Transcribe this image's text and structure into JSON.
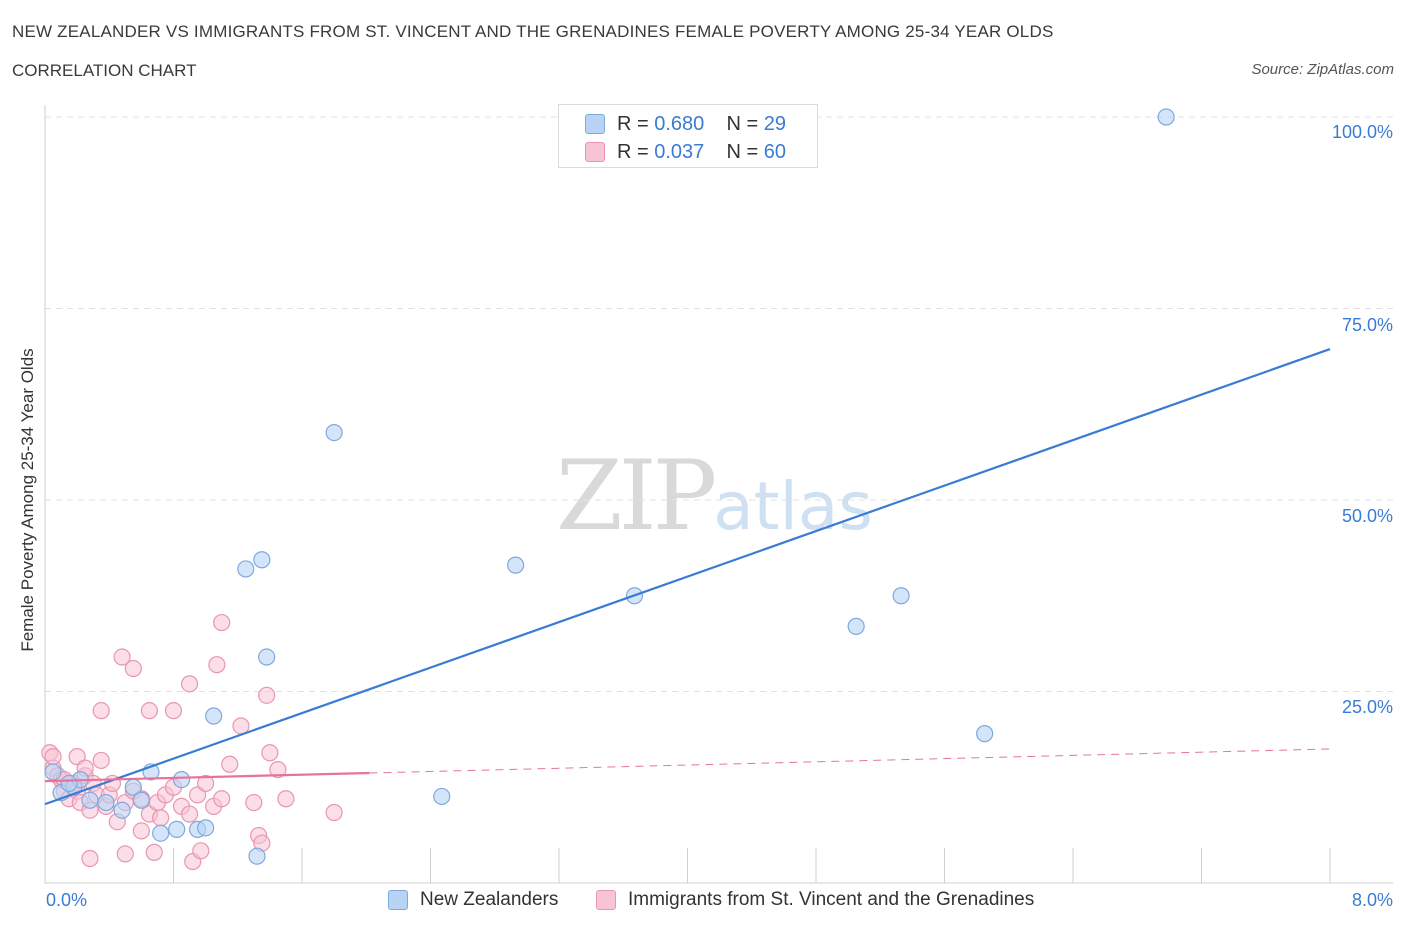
{
  "header": {
    "title": "NEW ZEALANDER VS IMMIGRANTS FROM ST. VINCENT AND THE GRENADINES FEMALE POVERTY AMONG 25-34 YEAR OLDS",
    "subtitle": "CORRELATION CHART",
    "source": "Source: ZipAtlas.com"
  },
  "watermark": {
    "zip": "ZIP",
    "atlas": "atlas"
  },
  "legend": {
    "r_label": "R =",
    "n_label": "N =",
    "series1": {
      "r": "0.680",
      "n": "29"
    },
    "series2": {
      "r": "0.037",
      "n": "60"
    }
  },
  "colors": {
    "series1_fill": "#b8d3f5",
    "series1_stroke": "#7fa9dc",
    "series1_line": "#3a7bd5",
    "series2_fill": "#f8c3d4",
    "series2_stroke": "#e896b1",
    "series2_line": "#e8739a"
  },
  "chart_data": {
    "type": "scatter",
    "title": "NEW ZEALANDER VS IMMIGRANTS FROM ST. VINCENT AND THE GRENADINES FEMALE POVERTY AMONG 25-34 YEAR OLDS",
    "xlabel": "",
    "ylabel": "Female Poverty Among 25-34 Year Olds",
    "xlim": [
      0,
      8
    ],
    "ylim": [
      0,
      102
    ],
    "x_tick_labels": [
      "0.0%",
      "8.0%"
    ],
    "y_tick_labels": [
      "100.0%",
      "75.0%",
      "50.0%",
      "25.0%"
    ],
    "y_ticks": [
      100,
      75,
      50,
      25
    ],
    "series": [
      {
        "name": "New Zealanders",
        "r": 0.68,
        "n": 29,
        "trend": {
          "x": [
            0,
            8
          ],
          "y": [
            10.3,
            69.7
          ],
          "dashed_from": null
        },
        "points": [
          [
            0.05,
            14.5
          ],
          [
            0.1,
            11.8
          ],
          [
            0.18,
            12.5
          ],
          [
            0.22,
            13.5
          ],
          [
            0.28,
            10.8
          ],
          [
            0.38,
            10.5
          ],
          [
            0.48,
            9.5
          ],
          [
            0.55,
            12.5
          ],
          [
            0.6,
            10.8
          ],
          [
            0.66,
            14.5
          ],
          [
            0.72,
            6.5
          ],
          [
            0.82,
            7.0
          ],
          [
            0.85,
            13.5
          ],
          [
            0.95,
            7.0
          ],
          [
            1.0,
            7.2
          ],
          [
            1.05,
            21.8
          ],
          [
            1.25,
            41.0
          ],
          [
            1.35,
            42.2
          ],
          [
            1.38,
            29.5
          ],
          [
            1.32,
            3.5
          ],
          [
            1.8,
            58.8
          ],
          [
            2.47,
            11.3
          ],
          [
            2.93,
            41.5
          ],
          [
            3.67,
            37.5
          ],
          [
            5.05,
            33.5
          ],
          [
            5.33,
            37.5
          ],
          [
            5.85,
            19.5
          ],
          [
            6.98,
            100.0
          ],
          [
            0.15,
            13.0
          ]
        ]
      },
      {
        "name": "Immigrants from St. Vincent and the Grenadines",
        "r": 0.037,
        "n": 60,
        "trend": {
          "x": [
            0,
            8
          ],
          "y": [
            13.3,
            17.5
          ],
          "dashed_from": 2.02
        },
        "points": [
          [
            0.03,
            17.0
          ],
          [
            0.05,
            15.0
          ],
          [
            0.08,
            14.0
          ],
          [
            0.1,
            13.5
          ],
          [
            0.12,
            12.0
          ],
          [
            0.15,
            11.0
          ],
          [
            0.18,
            13.0
          ],
          [
            0.2,
            12.0
          ],
          [
            0.22,
            10.5
          ],
          [
            0.25,
            14.0
          ],
          [
            0.28,
            9.5
          ],
          [
            0.3,
            13.0
          ],
          [
            0.32,
            11.5
          ],
          [
            0.35,
            16.0
          ],
          [
            0.38,
            10.0
          ],
          [
            0.4,
            11.5
          ],
          [
            0.45,
            8.0
          ],
          [
            0.5,
            10.5
          ],
          [
            0.55,
            12.0
          ],
          [
            0.6,
            11.0
          ],
          [
            0.65,
            9.0
          ],
          [
            0.7,
            10.5
          ],
          [
            0.75,
            11.5
          ],
          [
            0.8,
            12.5
          ],
          [
            0.85,
            10.0
          ],
          [
            0.9,
            9.0
          ],
          [
            0.95,
            11.5
          ],
          [
            1.0,
            13.0
          ],
          [
            1.05,
            10.0
          ],
          [
            1.1,
            11.0
          ],
          [
            0.35,
            22.5
          ],
          [
            0.55,
            28.0
          ],
          [
            0.48,
            29.5
          ],
          [
            0.65,
            22.5
          ],
          [
            0.8,
            22.5
          ],
          [
            0.9,
            26.0
          ],
          [
            1.07,
            28.5
          ],
          [
            1.1,
            34.0
          ],
          [
            1.22,
            20.5
          ],
          [
            1.38,
            24.5
          ],
          [
            1.4,
            17.0
          ],
          [
            1.45,
            14.8
          ],
          [
            1.5,
            11.0
          ],
          [
            1.8,
            9.2
          ],
          [
            1.3,
            10.5
          ],
          [
            1.33,
            6.2
          ],
          [
            1.35,
            5.2
          ],
          [
            0.28,
            3.2
          ],
          [
            0.5,
            3.8
          ],
          [
            0.68,
            4.0
          ],
          [
            0.92,
            2.8
          ],
          [
            0.97,
            4.2
          ],
          [
            0.6,
            6.8
          ],
          [
            0.72,
            8.5
          ],
          [
            0.42,
            13.0
          ],
          [
            0.2,
            16.5
          ],
          [
            0.12,
            13.5
          ],
          [
            1.15,
            15.5
          ],
          [
            0.05,
            16.5
          ],
          [
            0.25,
            15.0
          ]
        ]
      }
    ]
  }
}
